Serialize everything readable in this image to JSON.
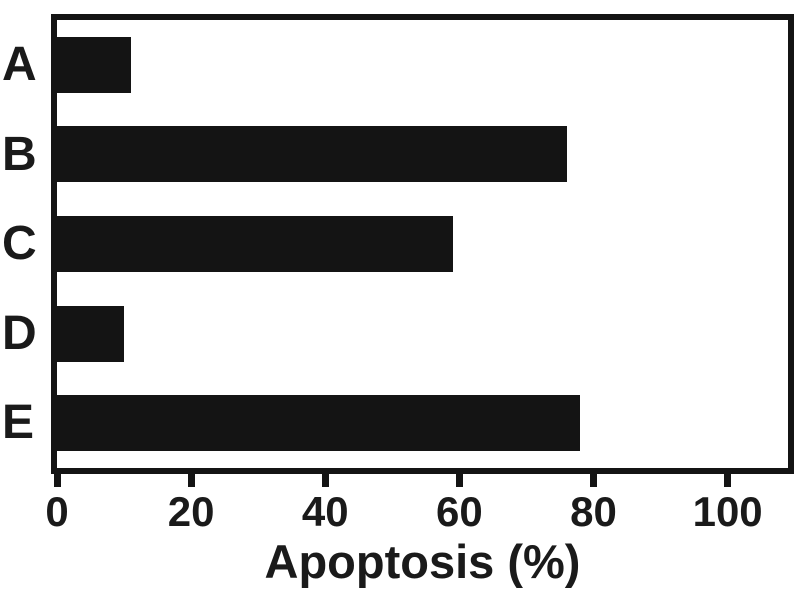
{
  "figure": {
    "background": "#ffffff"
  },
  "chart_data": {
    "type": "bar",
    "orientation": "horizontal",
    "categories": [
      "A",
      "B",
      "C",
      "D",
      "E"
    ],
    "values": [
      11,
      76,
      59,
      10,
      78
    ],
    "xlabel": "Apoptosis (%)",
    "xticks": [
      0,
      20,
      40,
      60,
      80,
      100
    ],
    "xlim": [
      0,
      109
    ],
    "grid": false,
    "legend": "none",
    "bar_color": "#141414",
    "axis_color": "#141414",
    "text_color": "#1a1a1a"
  }
}
